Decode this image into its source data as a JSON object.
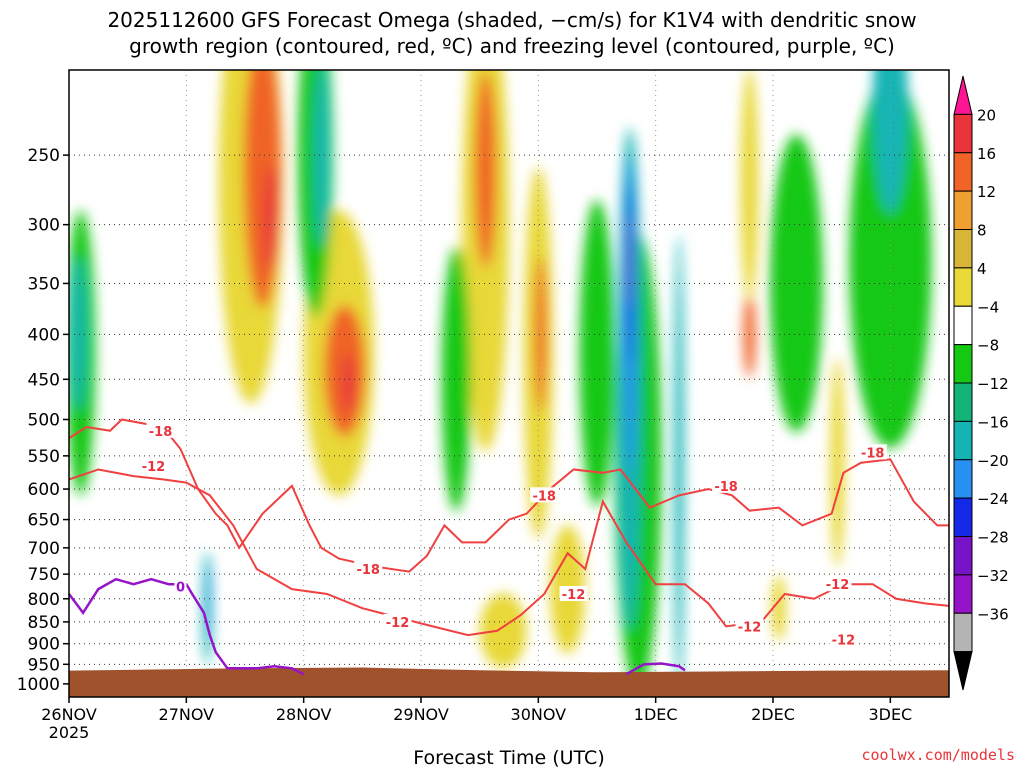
{
  "title_line1": "2025112600 GFS Forecast Omega (shaded, −cm/s) for K1V4 with dendritic snow",
  "title_line2": "growth region (contoured, red, ºC) and freezing level (contoured, purple, ºC)",
  "footer": "coolwx.com/models",
  "chart_data": {
    "type": "heatmap",
    "title": "2025112600 GFS Forecast Omega (shaded, −cm/s) for K1V4 with dendritic snow growth region (contoured, red, ºC) and freezing level (contoured, purple, ºC)",
    "xlabel": "Forecast Time (UTC)",
    "ylabel": "",
    "x_ticks": [
      {
        "label": "26NOV",
        "day": 0
      },
      {
        "label": "27NOV",
        "day": 1
      },
      {
        "label": "28NOV",
        "day": 2
      },
      {
        "label": "29NOV",
        "day": 3
      },
      {
        "label": "30NOV",
        "day": 4
      },
      {
        "label": "1DEC",
        "day": 5
      },
      {
        "label": "2DEC",
        "day": 6
      },
      {
        "label": "3DEC",
        "day": 7
      }
    ],
    "x_year_label": "2025",
    "x_range_days": [
      0,
      7.5
    ],
    "y_ticks": [
      250,
      300,
      350,
      400,
      450,
      500,
      550,
      600,
      650,
      700,
      750,
      800,
      850,
      900,
      950,
      1000
    ],
    "y_range_hpa": [
      200,
      1035
    ],
    "colorbar": {
      "labels": [
        "20",
        "16",
        "12",
        "8",
        "4",
        "−4",
        "−8",
        "−12",
        "−16",
        "−20",
        "−24",
        "−28",
        "−32",
        "−36"
      ],
      "colors": [
        "#ff1493",
        "#e8343a",
        "#f06428",
        "#f0a030",
        "#d8b438",
        "#e8d838",
        "#ffffff",
        "#14c814",
        "#14b478",
        "#14b4b4",
        "#2890f0",
        "#1428e8",
        "#7814c8",
        "#9614c8",
        "#b4b4b4",
        "#000000"
      ]
    },
    "ground_color": "#a0522d",
    "shading": [
      {
        "name": "ascent-band-27nov",
        "cat": "yellow",
        "day": 1.55,
        "p": 270,
        "w": 0.55,
        "h": 280
      },
      {
        "name": "ascent-core-27nov",
        "cat": "orange",
        "day": 1.65,
        "p": 260,
        "w": 0.32,
        "h": 180
      },
      {
        "name": "ascent-max-27nov",
        "cat": "red",
        "day": 1.72,
        "p": 295,
        "w": 0.12,
        "h": 80
      },
      {
        "name": "ascent-band-28nov",
        "cat": "yellow",
        "day": 2.3,
        "p": 420,
        "w": 0.6,
        "h": 300
      },
      {
        "name": "ascent-core-28nov",
        "cat": "orange",
        "day": 2.35,
        "p": 440,
        "w": 0.35,
        "h": 150
      },
      {
        "name": "ascent-max-28nov",
        "cat": "red",
        "day": 2.38,
        "p": 455,
        "w": 0.1,
        "h": 70
      },
      {
        "name": "ascent-band-29nov",
        "cat": "yellow",
        "day": 3.55,
        "p": 300,
        "w": 0.4,
        "h": 320
      },
      {
        "name": "ascent-core-29nov",
        "cat": "orange",
        "day": 3.55,
        "p": 260,
        "w": 0.18,
        "h": 130
      },
      {
        "name": "ascent-band-30nov",
        "cat": "yellow",
        "day": 4.0,
        "p": 420,
        "w": 0.25,
        "h": 380
      },
      {
        "name": "ascent-core-30nov",
        "cat": "orange",
        "day": 4.02,
        "p": 400,
        "w": 0.1,
        "h": 160
      },
      {
        "name": "ascent-low-29nov",
        "cat": "yellow",
        "day": 3.7,
        "p": 870,
        "w": 0.4,
        "h": 170
      },
      {
        "name": "ascent-low-30nov",
        "cat": "yellow",
        "day": 4.25,
        "p": 780,
        "w": 0.3,
        "h": 260
      },
      {
        "name": "ascent-2dec",
        "cat": "orange",
        "day": 5.8,
        "p": 400,
        "w": 0.1,
        "h": 90
      },
      {
        "name": "ascent-2dec-upper",
        "cat": "yellow",
        "day": 5.8,
        "p": 270,
        "w": 0.15,
        "h": 160
      },
      {
        "name": "ascent-3dec",
        "cat": "yellow",
        "day": 6.55,
        "p": 560,
        "w": 0.12,
        "h": 300
      },
      {
        "name": "ascent-low-1dec",
        "cat": "yellow",
        "day": 6.05,
        "p": 820,
        "w": 0.12,
        "h": 140
      },
      {
        "name": "descent-26nov",
        "cat": "green",
        "day": 0.1,
        "p": 420,
        "w": 0.25,
        "h": 300
      },
      {
        "name": "descent-26nov-teal",
        "cat": "teal",
        "day": 0.08,
        "p": 400,
        "w": 0.12,
        "h": 160
      },
      {
        "name": "descent-28nov",
        "cat": "green",
        "day": 2.1,
        "p": 250,
        "w": 0.3,
        "h": 200
      },
      {
        "name": "descent-28nov-teal",
        "cat": "teal",
        "day": 2.15,
        "p": 250,
        "w": 0.12,
        "h": 120
      },
      {
        "name": "descent-29nov",
        "cat": "green",
        "day": 3.3,
        "p": 450,
        "w": 0.25,
        "h": 300
      },
      {
        "name": "descent-30nov",
        "cat": "green",
        "day": 4.5,
        "p": 420,
        "w": 0.3,
        "h": 320
      },
      {
        "name": "descent-1dec-wide",
        "cat": "green",
        "day": 4.85,
        "p": 560,
        "w": 0.4,
        "h": 600
      },
      {
        "name": "descent-1dec-teal",
        "cat": "teal",
        "day": 4.78,
        "p": 450,
        "w": 0.2,
        "h": 520
      },
      {
        "name": "descent-1dec-blue",
        "cat": "blue",
        "day": 4.78,
        "p": 380,
        "w": 0.1,
        "h": 300
      },
      {
        "name": "descent-1dec-navy",
        "cat": "navy",
        "day": 4.78,
        "p": 340,
        "w": 0.05,
        "h": 160
      },
      {
        "name": "descent-1dec-purple",
        "cat": "purple",
        "day": 4.78,
        "p": 330,
        "w": 0.03,
        "h": 80
      },
      {
        "name": "descent-1dec-b",
        "cat": "teal",
        "day": 5.2,
        "p": 560,
        "w": 0.08,
        "h": 600
      },
      {
        "name": "descent-2dec",
        "cat": "green",
        "day": 6.2,
        "p": 350,
        "w": 0.45,
        "h": 260
      },
      {
        "name": "descent-3dec",
        "cat": "green",
        "day": 7.0,
        "p": 330,
        "w": 0.7,
        "h": 300
      },
      {
        "name": "descent-3dec-teal",
        "cat": "teal",
        "day": 7.0,
        "p": 220,
        "w": 0.3,
        "h": 120
      },
      {
        "name": "descent-27nov",
        "cat": "teal",
        "day": 1.18,
        "p": 820,
        "w": 0.08,
        "h": 240
      },
      {
        "name": "descent-27nov-blue",
        "cat": "blue",
        "day": 1.2,
        "p": 800,
        "w": 0.03,
        "h": 160
      }
    ],
    "dgz_contours": [
      {
        "label": "-18",
        "label_day": 0.78,
        "label_p": 515,
        "points": [
          [
            0,
            525
          ],
          [
            0.15,
            510
          ],
          [
            0.35,
            515
          ],
          [
            0.45,
            500
          ],
          [
            0.8,
            510
          ],
          [
            0.95,
            540
          ],
          [
            1.1,
            600
          ],
          [
            1.25,
            640
          ],
          [
            1.35,
            660
          ],
          [
            1.45,
            700
          ],
          [
            1.65,
            640
          ],
          [
            1.9,
            595
          ],
          [
            2.05,
            660
          ],
          [
            2.15,
            700
          ],
          [
            2.3,
            720
          ],
          [
            2.6,
            735
          ],
          [
            2.9,
            745
          ],
          [
            3.05,
            715
          ],
          [
            3.2,
            660
          ],
          [
            3.35,
            690
          ],
          [
            3.55,
            690
          ],
          [
            3.75,
            650
          ],
          [
            3.9,
            640
          ],
          [
            4.1,
            600
          ],
          [
            4.3,
            570
          ],
          [
            4.55,
            575
          ],
          [
            4.7,
            570
          ],
          [
            4.95,
            630
          ],
          [
            5.2,
            610
          ],
          [
            5.45,
            600
          ],
          [
            5.65,
            610
          ],
          [
            5.8,
            635
          ],
          [
            6.05,
            630
          ],
          [
            6.25,
            660
          ],
          [
            6.5,
            640
          ],
          [
            6.6,
            575
          ],
          [
            6.75,
            560
          ],
          [
            7.0,
            555
          ],
          [
            7.2,
            620
          ],
          [
            7.4,
            660
          ],
          [
            7.5,
            660
          ]
        ]
      },
      {
        "label": "-12",
        "label_day": 0.72,
        "label_p": 565,
        "points": [
          [
            0,
            585
          ],
          [
            0.25,
            570
          ],
          [
            0.55,
            580
          ],
          [
            0.8,
            585
          ],
          [
            1.0,
            590
          ],
          [
            1.2,
            610
          ],
          [
            1.4,
            660
          ],
          [
            1.6,
            740
          ],
          [
            1.9,
            780
          ],
          [
            2.2,
            790
          ],
          [
            2.5,
            820
          ],
          [
            2.8,
            840
          ],
          [
            3.1,
            860
          ],
          [
            3.4,
            880
          ],
          [
            3.65,
            870
          ],
          [
            3.85,
            835
          ],
          [
            4.05,
            790
          ],
          [
            4.25,
            710
          ],
          [
            4.4,
            740
          ],
          [
            4.55,
            620
          ],
          [
            4.75,
            690
          ],
          [
            5.0,
            770
          ],
          [
            5.25,
            770
          ],
          [
            5.45,
            810
          ],
          [
            5.6,
            860
          ],
          [
            5.9,
            850
          ],
          [
            6.1,
            790
          ],
          [
            6.35,
            800
          ],
          [
            6.6,
            770
          ],
          [
            6.85,
            770
          ],
          [
            7.05,
            800
          ],
          [
            7.3,
            810
          ],
          [
            7.5,
            815
          ]
        ]
      }
    ],
    "dgz_labels_extra": [
      {
        "label": "-18",
        "day": 2.55,
        "p": 740
      },
      {
        "label": "-18",
        "day": 4.05,
        "p": 610
      },
      {
        "label": "-18",
        "day": 5.6,
        "p": 595
      },
      {
        "label": "-18",
        "day": 6.85,
        "p": 545
      },
      {
        "label": "-12",
        "day": 2.8,
        "p": 850
      },
      {
        "label": "-12",
        "day": 4.3,
        "p": 790
      },
      {
        "label": "-12",
        "day": 5.8,
        "p": 860
      },
      {
        "label": "-12",
        "day": 6.55,
        "p": 770
      },
      {
        "label": "-12",
        "day": 6.6,
        "p": 890
      }
    ],
    "freezing_contours": [
      {
        "label": "0",
        "label_day": 0.95,
        "label_p": 775,
        "points": [
          [
            0,
            790
          ],
          [
            0.12,
            830
          ],
          [
            0.25,
            780
          ],
          [
            0.4,
            760
          ],
          [
            0.55,
            770
          ],
          [
            0.7,
            760
          ],
          [
            0.85,
            770
          ],
          [
            1.0,
            770
          ],
          [
            1.05,
            790
          ],
          [
            1.15,
            830
          ],
          [
            1.2,
            880
          ],
          [
            1.25,
            920
          ],
          [
            1.35,
            960
          ],
          [
            1.6,
            960
          ],
          [
            1.75,
            955
          ],
          [
            1.9,
            960
          ],
          [
            2.0,
            975
          ]
        ]
      },
      {
        "label": "",
        "label_day": 0,
        "label_p": 0,
        "points": [
          [
            4.75,
            975
          ],
          [
            4.9,
            950
          ],
          [
            5.05,
            948
          ],
          [
            5.2,
            955
          ],
          [
            5.25,
            965
          ]
        ]
      }
    ],
    "terrain_top_hpa": [
      [
        0,
        966
      ],
      [
        1.5,
        960
      ],
      [
        2.5,
        958
      ],
      [
        3.5,
        965
      ],
      [
        4.5,
        970
      ],
      [
        5.5,
        968
      ],
      [
        6.5,
        966
      ],
      [
        7.5,
        965
      ]
    ]
  }
}
